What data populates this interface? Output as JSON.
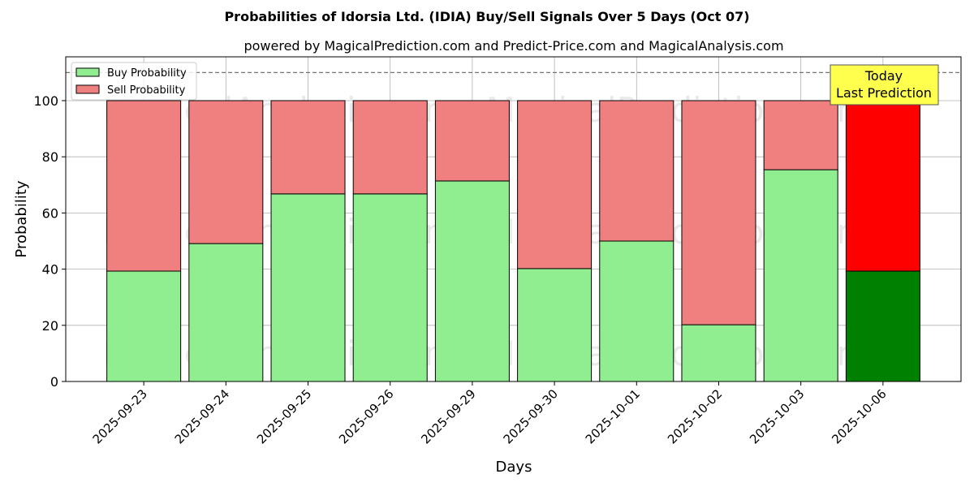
{
  "chart_data": {
    "type": "bar",
    "stacked": true,
    "title": "Probabilities of Idorsia Ltd. (IDIA) Buy/Sell Signals Over 5 Days (Oct 07)",
    "subtitle": "powered by MagicalPrediction.com and Predict-Price.com and MagicalAnalysis.com",
    "xlabel": "Days",
    "ylabel": "Probability",
    "ylim": [
      0,
      115.6
    ],
    "yticks": [
      0,
      20,
      40,
      60,
      80,
      100
    ],
    "grid": true,
    "legend_position": "top-left",
    "categories": [
      "2025-09-23",
      "2025-09-24",
      "2025-09-25",
      "2025-09-26",
      "2025-09-29",
      "2025-09-30",
      "2025-10-01",
      "2025-10-02",
      "2025-10-03",
      "2025-10-06"
    ],
    "series": [
      {
        "name": "Buy Probability",
        "values": [
          39.3,
          49.1,
          66.8,
          66.8,
          71.4,
          40.2,
          50.0,
          20.2,
          75.4,
          39.3
        ],
        "color": "#90ee90",
        "highlight_color": "#008000"
      },
      {
        "name": "Sell Probability",
        "values": [
          60.7,
          50.9,
          33.2,
          33.2,
          28.6,
          59.8,
          50.0,
          79.8,
          24.6,
          60.7
        ],
        "color": "#f08080",
        "highlight_color": "#ff0000"
      }
    ],
    "reference_line": 110,
    "annotation": {
      "line1": "Today",
      "line2": "Last Prediction",
      "color": "#ffff4d"
    },
    "watermarks": [
      "MagicalAnalysis.com",
      "MagicalPrediction.com"
    ]
  }
}
